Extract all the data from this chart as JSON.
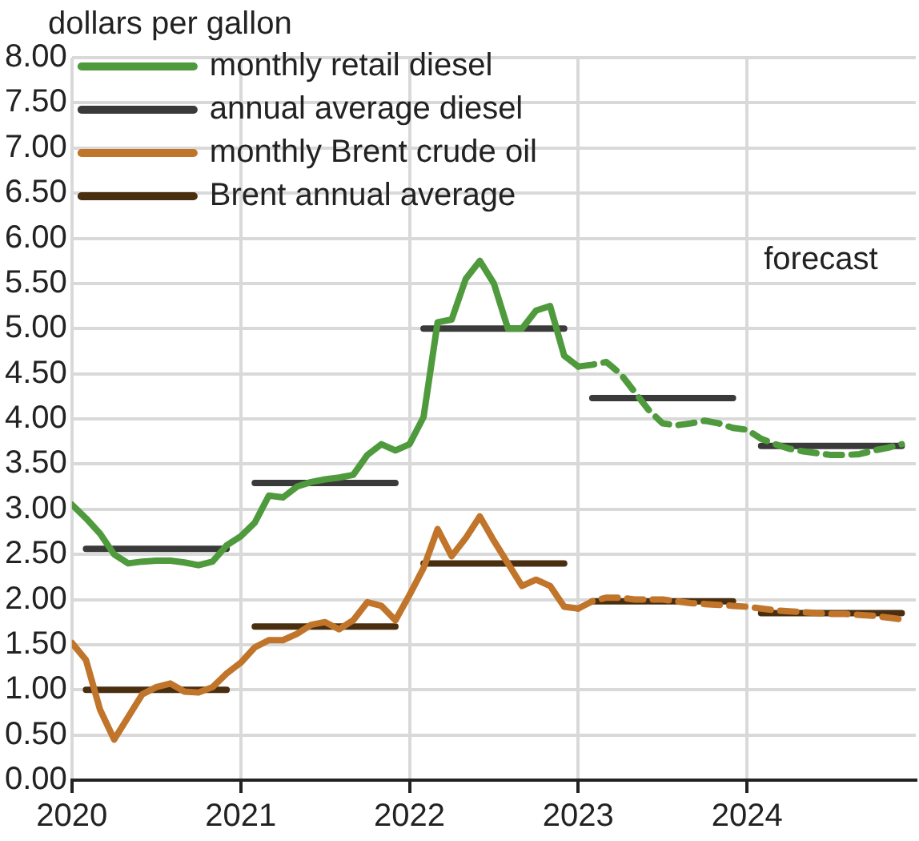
{
  "chart_data": {
    "type": "line",
    "ylabel": "dollars per gallon",
    "xlim": [
      "2020-01",
      "2025-01"
    ],
    "xticks": [
      "2020",
      "2021",
      "2022",
      "2023",
      "2024"
    ],
    "ylim": [
      0,
      8
    ],
    "yticks": [
      {
        "value": 0,
        "label": "0.00"
      },
      {
        "value": 0.5,
        "label": "0.50"
      },
      {
        "value": 1,
        "label": "1.00"
      },
      {
        "value": 1.5,
        "label": "1.50"
      },
      {
        "value": 2,
        "label": "2.00"
      },
      {
        "value": 2.5,
        "label": "2.50"
      },
      {
        "value": 3,
        "label": "3.00"
      },
      {
        "value": 3.5,
        "label": "3.50"
      },
      {
        "value": 4,
        "label": "4.00"
      },
      {
        "value": 4.5,
        "label": "4.50"
      },
      {
        "value": 5,
        "label": "5.00"
      },
      {
        "value": 5.5,
        "label": "5.50"
      },
      {
        "value": 6,
        "label": "6.00"
      },
      {
        "value": 6.5,
        "label": "6.50"
      },
      {
        "value": 7,
        "label": "7.00"
      },
      {
        "value": 7.5,
        "label": "7.50"
      },
      {
        "value": 8,
        "label": "8.00"
      }
    ],
    "grid": true,
    "legend": "top left",
    "marker": "none",
    "annotations": [
      "forecast"
    ],
    "series": [
      {
        "name": "monthly retail diesel",
        "color": "#4e9a3c",
        "line_style": "solid",
        "x": [
          "2020-01",
          "2020-02",
          "2020-03",
          "2020-04",
          "2020-05",
          "2020-06",
          "2020-07",
          "2020-08",
          "2020-09",
          "2020-10",
          "2020-11",
          "2020-12",
          "2021-01",
          "2021-02",
          "2021-03",
          "2021-04",
          "2021-05",
          "2021-06",
          "2021-07",
          "2021-08",
          "2021-09",
          "2021-10",
          "2021-11",
          "2021-12",
          "2022-01",
          "2022-02",
          "2022-03",
          "2022-04",
          "2022-05",
          "2022-06",
          "2022-07",
          "2022-08",
          "2022-09",
          "2022-10",
          "2022-11",
          "2022-12",
          "2023-01"
        ],
        "values": [
          3.05,
          2.9,
          2.73,
          2.5,
          2.4,
          2.42,
          2.43,
          2.43,
          2.41,
          2.38,
          2.42,
          2.6,
          2.7,
          2.85,
          3.15,
          3.13,
          3.25,
          3.3,
          3.33,
          3.35,
          3.38,
          3.6,
          3.72,
          3.65,
          3.72,
          4.02,
          5.07,
          5.1,
          5.55,
          5.75,
          5.5,
          5.0,
          5.0,
          5.2,
          5.25,
          4.7,
          4.58
        ]
      },
      {
        "color": "#4e9a3c",
        "line_style": "dashed",
        "x": [
          "2023-01",
          "2023-02",
          "2023-03",
          "2023-04",
          "2023-05",
          "2023-06",
          "2023-07",
          "2023-08",
          "2023-09",
          "2023-10",
          "2023-11",
          "2023-12",
          "2024-01",
          "2024-02",
          "2024-03",
          "2024-04",
          "2024-05",
          "2024-06",
          "2024-07",
          "2024-08",
          "2024-09",
          "2024-10",
          "2024-11",
          "2024-12"
        ],
        "values": [
          4.58,
          4.6,
          4.63,
          4.5,
          4.3,
          4.1,
          3.95,
          3.93,
          3.95,
          3.98,
          3.95,
          3.9,
          3.88,
          3.78,
          3.72,
          3.67,
          3.64,
          3.62,
          3.6,
          3.6,
          3.61,
          3.65,
          3.68,
          3.72
        ]
      },
      {
        "name": "annual average diesel",
        "color": "#3a3a3a",
        "line_style": "solid",
        "x": [
          "2020-02",
          "2020-12",
          "2021-01",
          "2021-02",
          "2021-12",
          "2022-01",
          "2022-02",
          "2022-12",
          "2023-01",
          "2023-02",
          "2023-12",
          "2024-01",
          "2024-02",
          "2024-12"
        ],
        "values": [
          2.56,
          2.56,
          null,
          3.29,
          3.29,
          null,
          5.0,
          5.0,
          null,
          4.23,
          4.23,
          null,
          3.7,
          3.7
        ]
      },
      {
        "name": "monthly Brent crude oil",
        "color": "#c0752a",
        "line_style": "solid",
        "x": [
          "2020-01",
          "2020-02",
          "2020-03",
          "2020-04",
          "2020-05",
          "2020-06",
          "2020-07",
          "2020-08",
          "2020-09",
          "2020-10",
          "2020-11",
          "2020-12",
          "2021-01",
          "2021-02",
          "2021-03",
          "2021-04",
          "2021-05",
          "2021-06",
          "2021-07",
          "2021-08",
          "2021-09",
          "2021-10",
          "2021-11",
          "2021-12",
          "2022-01",
          "2022-02",
          "2022-03",
          "2022-04",
          "2022-05",
          "2022-06",
          "2022-07",
          "2022-08",
          "2022-09",
          "2022-10",
          "2022-11",
          "2022-12",
          "2023-01"
        ],
        "values": [
          1.52,
          1.33,
          0.78,
          0.45,
          0.7,
          0.95,
          1.03,
          1.07,
          0.98,
          0.97,
          1.03,
          1.18,
          1.3,
          1.47,
          1.55,
          1.55,
          1.62,
          1.72,
          1.75,
          1.67,
          1.77,
          1.97,
          1.93,
          1.77,
          2.05,
          2.35,
          2.78,
          2.48,
          2.68,
          2.92,
          2.65,
          2.4,
          2.15,
          2.22,
          2.15,
          1.92,
          1.9
        ]
      },
      {
        "color": "#c0752a",
        "line_style": "dashed",
        "x": [
          "2023-01",
          "2023-02",
          "2023-03",
          "2023-04",
          "2023-05",
          "2023-06",
          "2023-07",
          "2023-08",
          "2023-09",
          "2023-10",
          "2023-11",
          "2023-12",
          "2024-01",
          "2024-02",
          "2024-03",
          "2024-04",
          "2024-05",
          "2024-06",
          "2024-07",
          "2024-08",
          "2024-09",
          "2024-10",
          "2024-11",
          "2024-12"
        ],
        "values": [
          1.9,
          1.98,
          2.02,
          2.02,
          2.0,
          2.0,
          2.0,
          1.98,
          1.96,
          1.95,
          1.94,
          1.93,
          1.92,
          1.9,
          1.88,
          1.87,
          1.86,
          1.85,
          1.84,
          1.84,
          1.83,
          1.82,
          1.8,
          1.78
        ]
      },
      {
        "name": "Brent annual average",
        "color": "#4a2e10",
        "line_style": "solid",
        "x": [
          "2020-02",
          "2020-12",
          "2021-01",
          "2021-02",
          "2021-12",
          "2022-01",
          "2022-02",
          "2022-12",
          "2023-01",
          "2023-02",
          "2023-12",
          "2024-01",
          "2024-02",
          "2024-12"
        ],
        "values": [
          1.0,
          1.0,
          null,
          1.7,
          1.7,
          null,
          2.4,
          2.4,
          null,
          1.98,
          1.98,
          null,
          1.85,
          1.85
        ]
      }
    ]
  }
}
